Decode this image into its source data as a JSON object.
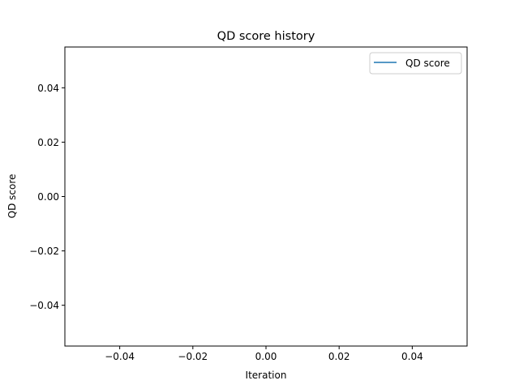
{
  "chart_data": {
    "type": "line",
    "title": "QD score history",
    "xlabel": "Iteration",
    "ylabel": "QD score",
    "xlim": [
      -0.055,
      0.055
    ],
    "ylim": [
      -0.055,
      0.055
    ],
    "xticks": [
      -0.04,
      -0.02,
      0.0,
      0.02,
      0.04
    ],
    "xtick_labels": [
      "−0.04",
      "−0.02",
      "0.00",
      "0.02",
      "0.04"
    ],
    "yticks": [
      -0.04,
      -0.02,
      0.0,
      0.02,
      0.04
    ],
    "ytick_labels": [
      "−0.04",
      "−0.02",
      "0.00",
      "0.02",
      "0.04"
    ],
    "grid": false,
    "legend": "top-right",
    "series": [
      {
        "name": "QD score",
        "color": "#1f77b4",
        "x": [],
        "y": []
      }
    ]
  }
}
